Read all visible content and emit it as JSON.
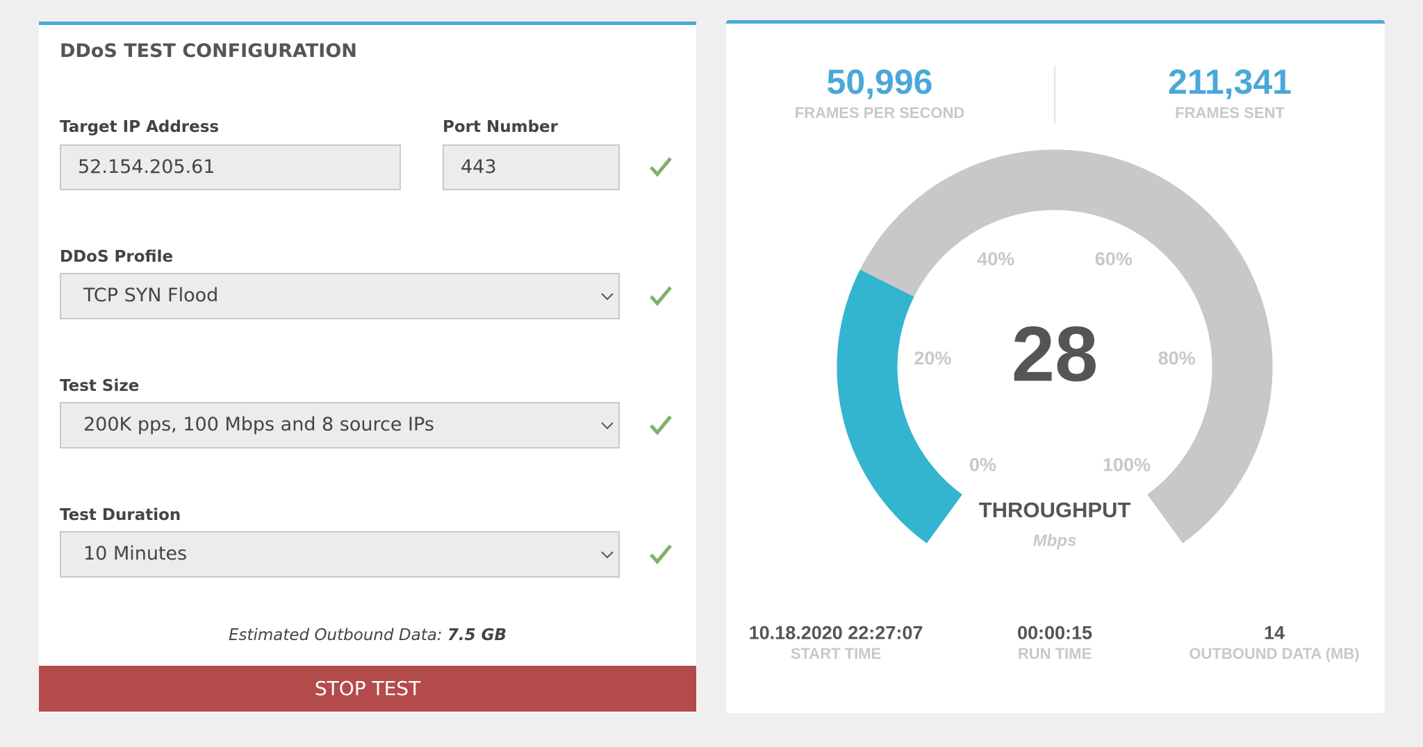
{
  "config": {
    "title": "DDoS TEST CONFIGURATION",
    "fields": [
      {
        "label": "Target IP Address",
        "value": "52.154.205.61"
      },
      {
        "label": "Port Number",
        "value": "443"
      },
      {
        "label": "DDoS Profile",
        "value": "TCP SYN Flood"
      },
      {
        "label": "Test Size",
        "value": "200K pps, 100 Mbps and 8 source IPs"
      },
      {
        "label": "Test Duration",
        "value": "10 Minutes"
      }
    ],
    "estimate": {
      "label": "Estimated Outbound Data:",
      "value": "7.5 GB"
    },
    "button": "STOP TEST"
  },
  "stats": {
    "top": [
      {
        "value": "50,996",
        "label": "FRAMES PER SECOND"
      },
      {
        "value": "211,341",
        "label": "FRAMES SENT"
      }
    ],
    "bottom": [
      {
        "value": "10.18.2020 22:27:07",
        "label": "START TIME"
      },
      {
        "value": "00:00:15",
        "label": "RUN TIME"
      },
      {
        "value": "14",
        "label": "OUTBOUND DATA (MB)"
      }
    ]
  },
  "gauge": {
    "value": 28,
    "title": "THROUGHPUT",
    "unit": "Mbps",
    "ticks": [
      {
        "value": 0,
        "label": "0%"
      },
      {
        "value": 20,
        "label": "20%"
      },
      {
        "value": 40,
        "label": "40%"
      },
      {
        "value": 60,
        "label": "60%"
      },
      {
        "value": 80,
        "label": "80%"
      },
      {
        "value": 100,
        "label": "100%"
      }
    ]
  }
}
